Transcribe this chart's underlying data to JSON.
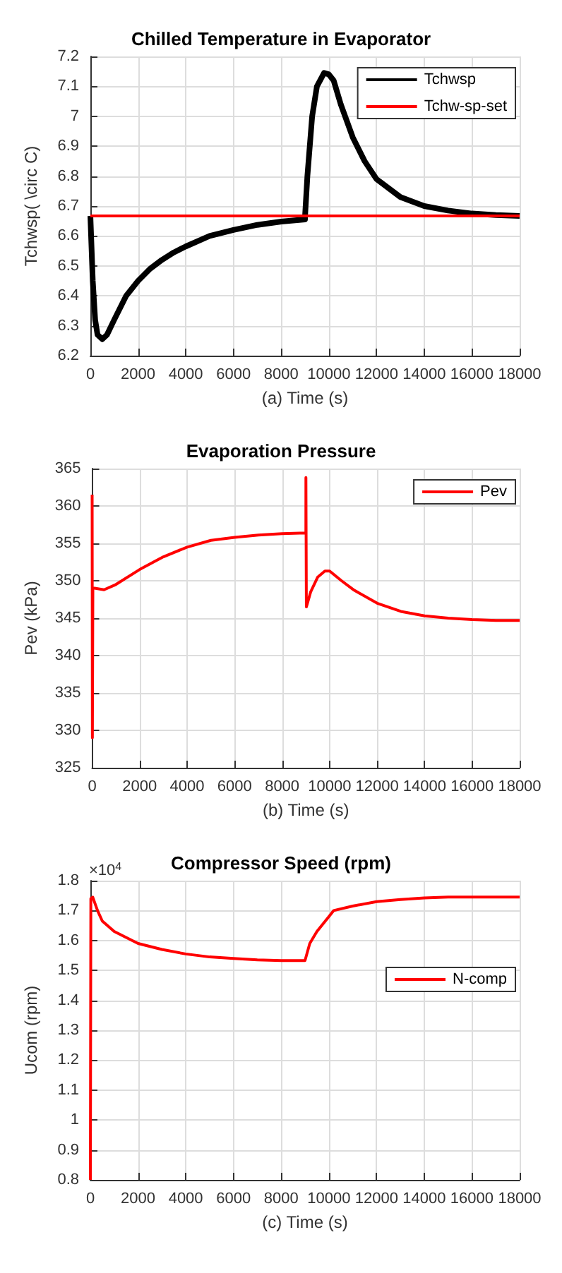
{
  "chart_data": [
    {
      "type": "line",
      "title": "Chilled Temperature in Evaporator",
      "xlabel": "(a) Time (s)",
      "ylabel": "Tchwsp( \\circ C)",
      "xlim": [
        0,
        18000
      ],
      "xticks": [
        0,
        2000,
        4000,
        6000,
        8000,
        10000,
        12000,
        14000,
        16000,
        18000
      ],
      "ylim": [
        6.2,
        7.2
      ],
      "yticks": [
        6.2,
        6.3,
        6.4,
        6.5,
        6.6,
        6.7,
        6.8,
        6.9,
        7,
        7.1,
        7.2
      ],
      "grid": true,
      "legend": "top right",
      "marker": "none",
      "line_style": "solid",
      "series": [
        {
          "name": "Tchwsp",
          "color": "#000000",
          "x": [
            0,
            100,
            200,
            300,
            500,
            700,
            1000,
            1500,
            2000,
            2500,
            3000,
            3500,
            4000,
            5000,
            6000,
            7000,
            8000,
            9000,
            9001,
            9100,
            9300,
            9500,
            9800,
            10000,
            10200,
            10500,
            11000,
            11500,
            12000,
            13000,
            14000,
            15000,
            16000,
            17000,
            18000
          ],
          "values": [
            6.667,
            6.45,
            6.32,
            6.27,
            6.255,
            6.27,
            6.32,
            6.4,
            6.45,
            6.49,
            6.52,
            6.545,
            6.565,
            6.6,
            6.62,
            6.637,
            6.648,
            6.655,
            6.665,
            6.8,
            7.0,
            7.1,
            7.145,
            7.14,
            7.12,
            7.04,
            6.93,
            6.85,
            6.79,
            6.73,
            6.7,
            6.685,
            6.675,
            6.67,
            6.667
          ]
        },
        {
          "name": "Tchw-sp-set",
          "color": "#ff0000",
          "x": [
            0,
            18000
          ],
          "values": [
            6.667,
            6.667
          ]
        }
      ]
    },
    {
      "type": "line",
      "title": "Evaporation Pressure",
      "xlabel": "(b) Time (s)",
      "ylabel": "Pev (kPa)",
      "xlim": [
        0,
        18000
      ],
      "xticks": [
        0,
        2000,
        4000,
        6000,
        8000,
        10000,
        12000,
        14000,
        16000,
        18000
      ],
      "ylim": [
        325,
        365
      ],
      "yticks": [
        325,
        330,
        335,
        340,
        345,
        350,
        355,
        360,
        365
      ],
      "grid": true,
      "legend": "top right",
      "marker": "none",
      "line_style": "solid",
      "series": [
        {
          "name": "Pev",
          "color": "#ff0000",
          "x": [
            0,
            10,
            30,
            100,
            500,
            1000,
            2000,
            3000,
            4000,
            5000,
            6000,
            7000,
            8000,
            9000,
            9001,
            9020,
            9200,
            9500,
            9800,
            10000,
            10500,
            11000,
            12000,
            13000,
            14000,
            15000,
            16000,
            17000,
            18000
          ],
          "values": [
            361.5,
            329,
            349,
            349,
            348.8,
            349.5,
            351.5,
            353.2,
            354.5,
            355.4,
            355.8,
            356.1,
            356.3,
            356.4,
            363.8,
            346.5,
            348.5,
            350.5,
            351.3,
            351.3,
            350,
            348.8,
            347,
            345.9,
            345.3,
            345,
            344.8,
            344.7,
            344.7
          ]
        }
      ]
    },
    {
      "type": "line",
      "title": "Compressor Speed (rpm)",
      "xlabel": "(c) Time (s)",
      "ylabel": "Ucom (rpm)",
      "annotations": [
        "×10$^{4}$"
      ],
      "xlim": [
        0,
        18000
      ],
      "xticks": [
        0,
        2000,
        4000,
        6000,
        8000,
        10000,
        12000,
        14000,
        16000,
        18000
      ],
      "ylim": [
        0.8,
        1.8
      ],
      "yticks": [
        0.8,
        0.9,
        1,
        1.1,
        1.2,
        1.3,
        1.4,
        1.5,
        1.6,
        1.7,
        1.8
      ],
      "grid": true,
      "legend": "right",
      "marker": "none",
      "line_style": "solid",
      "series": [
        {
          "name": "N-comp",
          "color": "#ff0000",
          "x": [
            0,
            20,
            100,
            300,
            500,
            1000,
            2000,
            3000,
            4000,
            5000,
            6000,
            7000,
            8000,
            9000,
            9200,
            9500,
            10000,
            10200,
            11000,
            12000,
            13000,
            14000,
            15000,
            16000,
            18000
          ],
          "values": [
            0.8,
            1.74,
            1.745,
            1.7,
            1.665,
            1.63,
            1.59,
            1.57,
            1.555,
            1.545,
            1.54,
            1.535,
            1.533,
            1.533,
            1.59,
            1.63,
            1.68,
            1.7,
            1.715,
            1.73,
            1.737,
            1.742,
            1.745,
            1.745,
            1.745
          ]
        }
      ]
    }
  ]
}
